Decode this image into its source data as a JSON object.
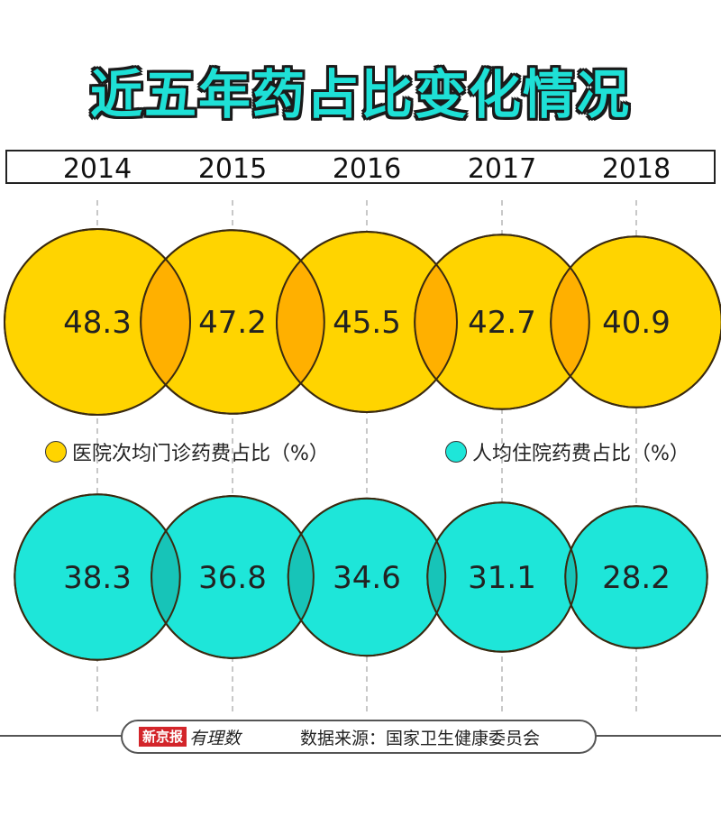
{
  "title": "近五年药占比变化情况",
  "colors": {
    "series_outpatient": "#ffd400",
    "series_inpatient": "#1ee6d9",
    "overlap_outpatient": "#ffb000",
    "overlap_inpatient": "#17c4b8",
    "title_fill": "#1ee0d6",
    "logo_red": "#d3252a"
  },
  "chart_data": {
    "type": "bubble",
    "categories": [
      "2014",
      "2015",
      "2016",
      "2017",
      "2018"
    ],
    "series": [
      {
        "name": "医院次均门诊药费占比（%）",
        "values": [
          48.3,
          47.2,
          45.5,
          42.7,
          40.9
        ],
        "value_labels": [
          "48.3",
          "47.2",
          "45.5",
          "42.7",
          "40.9"
        ]
      },
      {
        "name": "人均住院药费占比（%）",
        "values": [
          38.3,
          36.8,
          34.6,
          31.1,
          28.2
        ],
        "value_labels": [
          "38.3",
          "36.8",
          "34.6",
          "31.1",
          "28.2"
        ]
      }
    ],
    "legend_position": "between-rows"
  },
  "legend": {
    "outpatient_label": "医院次均门诊药费占比（%）",
    "inpatient_label": "人均住院药费占比（%）"
  },
  "footer": {
    "logo_text": "新京报",
    "logo_script": "有理数",
    "source": "数据来源：国家卫生健康委员会"
  }
}
